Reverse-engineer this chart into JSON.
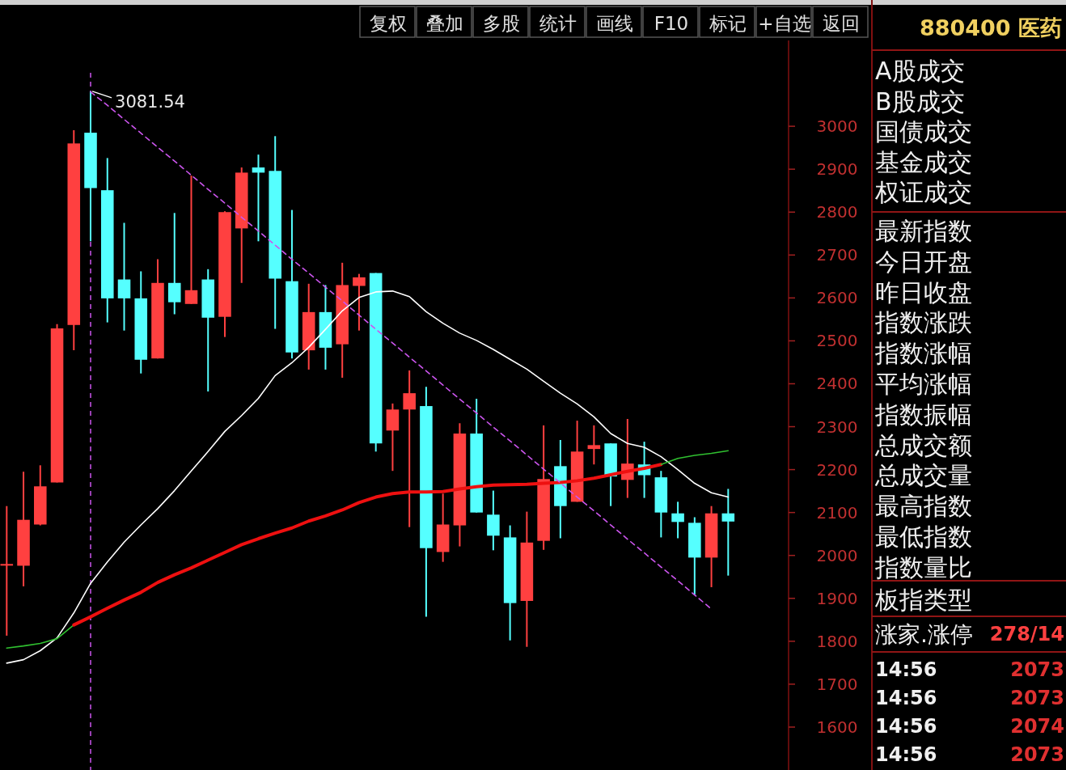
{
  "chart_data": [
    {
      "type": "candlestick",
      "categories": [
        null,
        null,
        null,
        null,
        null,
        null,
        null,
        null,
        null,
        null,
        null,
        null,
        null,
        null,
        null,
        null,
        null,
        null,
        null,
        null,
        null,
        null,
        null,
        null,
        null,
        null,
        null,
        null,
        null,
        null,
        null,
        null,
        null,
        null,
        null,
        null,
        null,
        null,
        null,
        null,
        null,
        null,
        null,
        null
      ],
      "ohlc": [
        [
          1978,
          2115,
          1813,
          1980
        ],
        [
          1976,
          2195,
          1928,
          2083
        ],
        [
          2072,
          2210,
          2070,
          2161
        ],
        [
          2170,
          2539,
          2170,
          2529
        ],
        [
          2537,
          2991,
          2478,
          2960
        ],
        [
          2985,
          3081.54,
          2732,
          2856
        ],
        [
          2851,
          2926,
          2543,
          2599
        ],
        [
          2643,
          2775,
          2524,
          2599
        ],
        [
          2599,
          2662,
          2424,
          2456
        ],
        [
          2459,
          2690,
          2459,
          2635
        ],
        [
          2635,
          2798,
          2562,
          2590
        ],
        [
          2586,
          2885,
          2586,
          2618
        ],
        [
          2643,
          2667,
          2382,
          2554
        ],
        [
          2556,
          2802,
          2509,
          2800
        ],
        [
          2762,
          2904,
          2635,
          2892
        ],
        [
          2904,
          2934,
          2732,
          2892
        ],
        [
          2896,
          2977,
          2528,
          2645
        ],
        [
          2639,
          2805,
          2459,
          2473
        ],
        [
          2478,
          2633,
          2433,
          2567
        ],
        [
          2567,
          2630,
          2433,
          2484
        ],
        [
          2492,
          2682,
          2414,
          2630
        ],
        [
          2628,
          2656,
          2524,
          2648
        ],
        [
          2658,
          2658,
          2242,
          2261
        ],
        [
          2291,
          2354,
          2197,
          2340
        ],
        [
          2340,
          2431,
          2066,
          2378
        ],
        [
          2348,
          2393,
          1857,
          2017
        ],
        [
          2008,
          2144,
          1985,
          2072
        ],
        [
          2070,
          2308,
          2021,
          2284
        ],
        [
          2284,
          2365,
          2100,
          2100
        ],
        [
          2095,
          2151,
          2012,
          2046
        ],
        [
          2042,
          2070,
          1802,
          1889
        ],
        [
          1894,
          2102,
          1787,
          2030
        ],
        [
          2034,
          2303,
          2013,
          2178
        ],
        [
          2208,
          2269,
          2040,
          2115
        ],
        [
          2125,
          2314,
          2125,
          2242
        ],
        [
          2248,
          2303,
          2212,
          2257
        ],
        [
          2261,
          2261,
          2115,
          2184
        ],
        [
          2176,
          2318,
          2134,
          2214
        ],
        [
          2212,
          2265,
          2134,
          2187
        ],
        [
          2182,
          2197,
          2042,
          2100
        ],
        [
          2098,
          2125,
          2040,
          2078
        ],
        [
          2076,
          2089,
          1909,
          1995
        ],
        [
          1995,
          2115,
          1926,
          2098
        ],
        [
          2098,
          2155,
          1953,
          2079
        ]
      ],
      "colors": [
        "#ff4040",
        "#ff4040",
        "#ff4040",
        "#ff4040",
        "#ff4040",
        "#55ffff",
        "#55ffff",
        "#55ffff",
        "#55ffff",
        "#ff4040",
        "#55ffff",
        "#ff4040",
        "#55ffff",
        "#ff4040",
        "#ff4040",
        "#55ffff",
        "#55ffff",
        "#55ffff",
        "#ff4040",
        "#55ffff",
        "#ff4040",
        "#ff4040",
        "#55ffff",
        "#ff4040",
        "#ff4040",
        "#55ffff",
        "#ff4040",
        "#ff4040",
        "#55ffff",
        "#55ffff",
        "#55ffff",
        "#ff4040",
        "#ff4040",
        "#55ffff",
        "#ff4040",
        "#ff4040",
        "#55ffff",
        "#ff4040",
        "#55ffff",
        "#55ffff",
        "#55ffff",
        "#55ffff",
        "#ff4040",
        "#55ffff"
      ],
      "series": [
        {
          "type": "line",
          "color": "#ffffff",
          "values": [
            1749,
            1757,
            1778,
            1808,
            1866,
            1935,
            1985,
            2031,
            2071,
            2109,
            2151,
            2197,
            2242,
            2289,
            2326,
            2366,
            2419,
            2449,
            2485,
            2527,
            2570,
            2601,
            2614,
            2616,
            2603,
            2568,
            2541,
            2518,
            2501,
            2480,
            2457,
            2434,
            2406,
            2378,
            2353,
            2323,
            2284,
            2261,
            2252,
            2230,
            2200,
            2168,
            2146,
            2136
          ]
        },
        {
          "type": "line",
          "color": "#30c030",
          "values": [
            1784,
            1789,
            1795,
            1806,
            1838,
            null,
            null,
            null,
            null,
            null,
            null,
            null,
            null,
            null,
            null,
            null,
            null,
            null,
            null,
            null,
            null,
            null,
            null,
            null,
            null,
            null,
            null,
            null,
            null,
            null,
            null,
            null,
            null,
            null,
            null,
            null,
            null,
            null,
            null,
            null,
            null,
            null,
            null,
            null
          ]
        },
        {
          "type": "line",
          "color": "#ee1010",
          "values": [
            null,
            null,
            null,
            null,
            1838,
            1857,
            1877,
            1896,
            1914,
            1937,
            1955,
            1971,
            1989,
            2007,
            2025,
            2039,
            2052,
            2064,
            2080,
            2092,
            2106,
            2123,
            2136,
            2144,
            2148,
            2148,
            2149,
            2155,
            2160,
            2164,
            2165,
            2166,
            2168,
            2170,
            2174,
            2180,
            2188,
            2196,
            2203,
            2212,
            null,
            null,
            null,
            null
          ]
        },
        {
          "type": "line",
          "color": "#30c030",
          "values": [
            null,
            null,
            null,
            null,
            null,
            null,
            null,
            null,
            null,
            null,
            null,
            null,
            null,
            null,
            null,
            null,
            null,
            null,
            null,
            null,
            null,
            null,
            null,
            null,
            null,
            null,
            null,
            null,
            null,
            null,
            null,
            null,
            null,
            null,
            null,
            null,
            null,
            null,
            null,
            2212,
            2226,
            2233,
            2238,
            2244
          ]
        },
        {
          "type": "line",
          "color": "#cc55ee",
          "line_style": "dashed",
          "values": [
            null,
            null,
            null,
            null,
            null,
            3080,
            3049,
            3016,
            2984,
            2951,
            2919,
            2886,
            2853,
            2821,
            2788,
            2756,
            2723,
            2690,
            2658,
            2625,
            2593,
            2560,
            2527,
            2495,
            2462,
            2430,
            2397,
            2364,
            2332,
            2299,
            2267,
            2234,
            2201,
            2169,
            2136,
            2104,
            2071,
            2038,
            2006,
            1973,
            1941,
            1908,
            1875,
            null
          ]
        }
      ],
      "ylim": [
        1500,
        3200
      ],
      "yticks": [
        1600,
        1700,
        1800,
        1900,
        2000,
        2100,
        2200,
        2300,
        2400,
        2500,
        2600,
        2700,
        2800,
        2900,
        3000
      ],
      "tick_labels": "y",
      "annotations": [
        "3081.54",
        "复权",
        "叠加",
        "多股",
        "统计",
        "画线",
        "F10",
        "标记",
        "+自选",
        "返回"
      ]
    },
    {
      "type": "other",
      "title": "880400 医药",
      "annotations": [
        "A股成交",
        "B股成交",
        "国债成交",
        "基金成交",
        "权证成交",
        "最新指数",
        "今日开盘",
        "昨日收盘",
        "指数涨跌",
        "指数涨幅",
        "平均涨幅",
        "指数振幅",
        "总成交额",
        "总成交量",
        "最高指数",
        "最低指数",
        "指数量比",
        "板指类型",
        "涨家.涨停",
        "278/14",
        "14:56",
        "2073",
        "14:56",
        "2073",
        "14:56",
        "2074",
        "14:56",
        "2073"
      ]
    }
  ]
}
